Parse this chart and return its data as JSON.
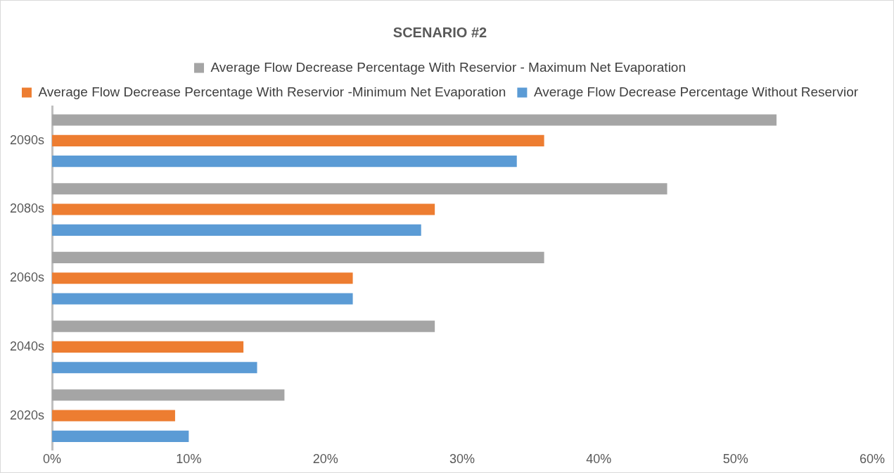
{
  "chart_data": {
    "type": "bar",
    "orientation": "horizontal",
    "title": "SCENARIO #2",
    "categories": [
      "2090s",
      "2080s",
      "2060s",
      "2040s",
      "2020s"
    ],
    "series": [
      {
        "name": "Average Flow Decrease Percentage With Reservior - Maximum Net Evaporation",
        "color": "#a5a5a5",
        "values": [
          53,
          45,
          36,
          28,
          17
        ]
      },
      {
        "name": "Average Flow Decrease Percentage With Reservior -Minimum Net Evaporation",
        "color": "#ed7d31",
        "values": [
          36,
          28,
          22,
          14,
          9
        ]
      },
      {
        "name": "Average Flow Decrease Percentage Without Reservior",
        "color": "#5b9bd5",
        "values": [
          34,
          27,
          22,
          15,
          10
        ]
      }
    ],
    "xlim": [
      0,
      60
    ],
    "xticks": [
      {
        "value": 0,
        "label": "0%"
      },
      {
        "value": 10,
        "label": "10%"
      },
      {
        "value": 20,
        "label": "20%"
      },
      {
        "value": 30,
        "label": "30%"
      },
      {
        "value": 40,
        "label": "40%"
      },
      {
        "value": 50,
        "label": "50%"
      },
      {
        "value": 60,
        "label": "60%"
      }
    ],
    "grid": false,
    "legend": "top"
  }
}
